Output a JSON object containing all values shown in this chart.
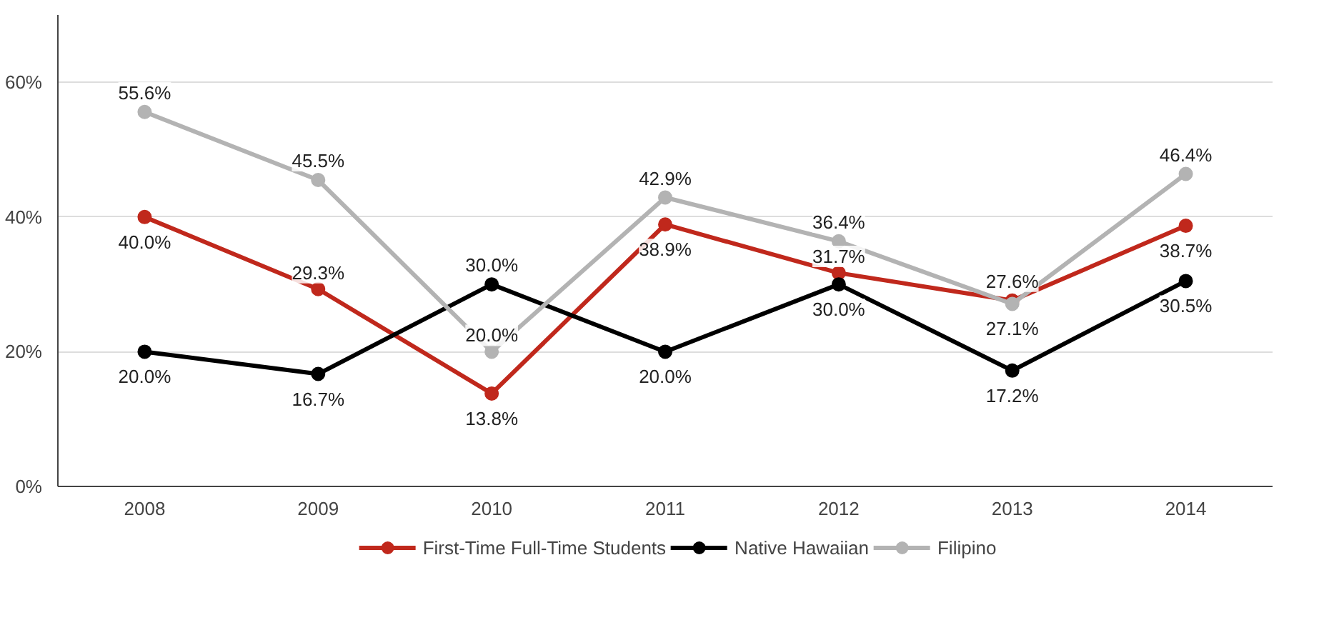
{
  "chart_data": {
    "type": "line",
    "categories": [
      "2008",
      "2009",
      "2010",
      "2011",
      "2012",
      "2013",
      "2014"
    ],
    "series": [
      {
        "name": "First-Time Full-Time Students",
        "color": "#c0281c",
        "values": [
          40.0,
          29.3,
          13.8,
          38.9,
          31.7,
          27.6,
          38.7
        ],
        "value_labels": [
          "40.0%",
          "29.3%",
          "13.8%",
          "38.9%",
          "31.7%",
          "27.6%",
          "38.7%"
        ]
      },
      {
        "name": "Native Hawaiian",
        "color": "#000000",
        "values": [
          20.0,
          16.7,
          30.0,
          20.0,
          30.0,
          17.2,
          30.5
        ],
        "value_labels": [
          "20.0%",
          "16.7%",
          "30.0%",
          "20.0%",
          "30.0%",
          "17.2%",
          "30.5%"
        ]
      },
      {
        "name": "Filipino",
        "color": "#b3b3b3",
        "values": [
          55.6,
          45.5,
          20.0,
          42.9,
          36.4,
          27.1,
          46.4
        ],
        "value_labels": [
          "55.6%",
          "45.5%",
          "20.0%",
          "42.9%",
          "36.4%",
          "27.1%",
          "46.4%"
        ]
      }
    ],
    "ylim": [
      0,
      70
    ],
    "yticks": [
      {
        "value": 0,
        "label": "0%"
      },
      {
        "value": 20,
        "label": "20%"
      },
      {
        "value": 40,
        "label": "40%"
      },
      {
        "value": 60,
        "label": "60%"
      }
    ],
    "grid": "y",
    "legend": "bottom",
    "marker": "circle",
    "line_style": "solid"
  }
}
